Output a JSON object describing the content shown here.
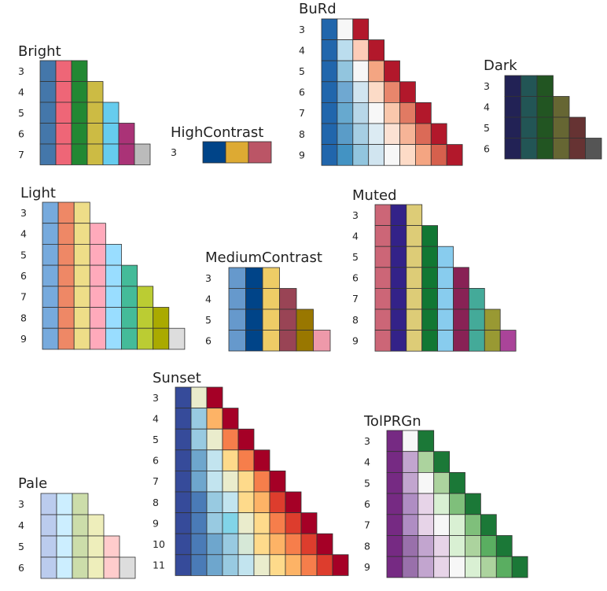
{
  "chart_data": [
    {
      "type": "heatmap",
      "title": "Bright",
      "rows": [
        {
          "label": "3",
          "colors": [
            "#4477AA",
            "#EE6677",
            "#228833"
          ]
        },
        {
          "label": "4",
          "colors": [
            "#4477AA",
            "#EE6677",
            "#228833",
            "#CCBB44"
          ]
        },
        {
          "label": "5",
          "colors": [
            "#4477AA",
            "#EE6677",
            "#228833",
            "#CCBB44",
            "#66CCEE"
          ]
        },
        {
          "label": "6",
          "colors": [
            "#4477AA",
            "#EE6677",
            "#228833",
            "#CCBB44",
            "#66CCEE",
            "#AA3377"
          ]
        },
        {
          "label": "7",
          "colors": [
            "#4477AA",
            "#EE6677",
            "#228833",
            "#CCBB44",
            "#66CCEE",
            "#AA3377",
            "#BBBBBB"
          ]
        }
      ]
    },
    {
      "type": "heatmap",
      "title": "HighContrast",
      "rows": [
        {
          "label": "3",
          "colors": [
            "#004488",
            "#DDAA33",
            "#BB5566"
          ]
        }
      ]
    },
    {
      "type": "heatmap",
      "title": "BuRd",
      "rows": [
        {
          "label": "3",
          "colors": [
            "#2166AC",
            "#F7F7F7",
            "#B2182B"
          ]
        },
        {
          "label": "4",
          "colors": [
            "#2166AC",
            "#BBDDEE",
            "#FDCCB8",
            "#B2182B"
          ]
        },
        {
          "label": "5",
          "colors": [
            "#2166AC",
            "#92C5DE",
            "#F7F7F7",
            "#F4A582",
            "#B2182B"
          ]
        },
        {
          "label": "6",
          "colors": [
            "#2166AC",
            "#6FA8D1",
            "#D1E5F0",
            "#FCDBC7",
            "#E8866C",
            "#B2182B"
          ]
        },
        {
          "label": "7",
          "colors": [
            "#2166AC",
            "#67A9CF",
            "#B8D7E8",
            "#F7F7F7",
            "#F9C7AC",
            "#E17A63",
            "#B2182B"
          ]
        },
        {
          "label": "8",
          "colors": [
            "#2166AC",
            "#5A9CC8",
            "#A6CEE3",
            "#DCEBF3",
            "#FBE1D3",
            "#F6B497",
            "#DB6A57",
            "#B2182B"
          ]
        },
        {
          "label": "9",
          "colors": [
            "#2166AC",
            "#4393C3",
            "#92C5DE",
            "#D1E5F0",
            "#F7F7F7",
            "#FDDBC7",
            "#F4A582",
            "#D6604D",
            "#B2182B"
          ]
        }
      ]
    },
    {
      "type": "heatmap",
      "title": "Dark",
      "rows": [
        {
          "label": "3",
          "colors": [
            "#222255",
            "#225555",
            "#225522"
          ]
        },
        {
          "label": "4",
          "colors": [
            "#222255",
            "#225555",
            "#225522",
            "#666633"
          ]
        },
        {
          "label": "5",
          "colors": [
            "#222255",
            "#225555",
            "#225522",
            "#666633",
            "#663333"
          ]
        },
        {
          "label": "6",
          "colors": [
            "#222255",
            "#225555",
            "#225522",
            "#666633",
            "#663333",
            "#555555"
          ]
        }
      ]
    },
    {
      "type": "heatmap",
      "title": "Light",
      "rows": [
        {
          "label": "3",
          "colors": [
            "#77AADD",
            "#EE8866",
            "#EEDD88"
          ]
        },
        {
          "label": "4",
          "colors": [
            "#77AADD",
            "#EE8866",
            "#EEDD88",
            "#FFAABB"
          ]
        },
        {
          "label": "5",
          "colors": [
            "#77AADD",
            "#EE8866",
            "#EEDD88",
            "#FFAABB",
            "#99DDFF"
          ]
        },
        {
          "label": "6",
          "colors": [
            "#77AADD",
            "#EE8866",
            "#EEDD88",
            "#FFAABB",
            "#99DDFF",
            "#44BB99"
          ]
        },
        {
          "label": "7",
          "colors": [
            "#77AADD",
            "#EE8866",
            "#EEDD88",
            "#FFAABB",
            "#99DDFF",
            "#44BB99",
            "#BBCC33"
          ]
        },
        {
          "label": "8",
          "colors": [
            "#77AADD",
            "#EE8866",
            "#EEDD88",
            "#FFAABB",
            "#99DDFF",
            "#44BB99",
            "#BBCC33",
            "#AAAA00"
          ]
        },
        {
          "label": "9",
          "colors": [
            "#77AADD",
            "#EE8866",
            "#EEDD88",
            "#FFAABB",
            "#99DDFF",
            "#44BB99",
            "#BBCC33",
            "#AAAA00",
            "#DDDDDD"
          ]
        }
      ]
    },
    {
      "type": "heatmap",
      "title": "MediumContrast",
      "rows": [
        {
          "label": "3",
          "colors": [
            "#6699CC",
            "#004488",
            "#EECC66"
          ]
        },
        {
          "label": "4",
          "colors": [
            "#6699CC",
            "#004488",
            "#EECC66",
            "#994455"
          ]
        },
        {
          "label": "5",
          "colors": [
            "#6699CC",
            "#004488",
            "#EECC66",
            "#994455",
            "#997700"
          ]
        },
        {
          "label": "6",
          "colors": [
            "#6699CC",
            "#004488",
            "#EECC66",
            "#994455",
            "#997700",
            "#EE99AA"
          ]
        }
      ]
    },
    {
      "type": "heatmap",
      "title": "Muted",
      "rows": [
        {
          "label": "3",
          "colors": [
            "#CC6677",
            "#332288",
            "#DDCC77"
          ]
        },
        {
          "label": "4",
          "colors": [
            "#CC6677",
            "#332288",
            "#DDCC77",
            "#117733"
          ]
        },
        {
          "label": "5",
          "colors": [
            "#CC6677",
            "#332288",
            "#DDCC77",
            "#117733",
            "#88CCEE"
          ]
        },
        {
          "label": "6",
          "colors": [
            "#CC6677",
            "#332288",
            "#DDCC77",
            "#117733",
            "#88CCEE",
            "#882255"
          ]
        },
        {
          "label": "7",
          "colors": [
            "#CC6677",
            "#332288",
            "#DDCC77",
            "#117733",
            "#88CCEE",
            "#882255",
            "#44AA99"
          ]
        },
        {
          "label": "8",
          "colors": [
            "#CC6677",
            "#332288",
            "#DDCC77",
            "#117733",
            "#88CCEE",
            "#882255",
            "#44AA99",
            "#999933"
          ]
        },
        {
          "label": "9",
          "colors": [
            "#CC6677",
            "#332288",
            "#DDCC77",
            "#117733",
            "#88CCEE",
            "#882255",
            "#44AA99",
            "#999933",
            "#AA4499"
          ]
        }
      ]
    },
    {
      "type": "heatmap",
      "title": "Pale",
      "rows": [
        {
          "label": "3",
          "colors": [
            "#BBCCEE",
            "#CCEEFF",
            "#CCDDAA"
          ]
        },
        {
          "label": "4",
          "colors": [
            "#BBCCEE",
            "#CCEEFF",
            "#CCDDAA",
            "#EEEEBB"
          ]
        },
        {
          "label": "5",
          "colors": [
            "#BBCCEE",
            "#CCEEFF",
            "#CCDDAA",
            "#EEEEBB",
            "#FFCCCC"
          ]
        },
        {
          "label": "6",
          "colors": [
            "#BBCCEE",
            "#CCEEFF",
            "#CCDDAA",
            "#EEEEBB",
            "#FFCCCC",
            "#DDDDDD"
          ]
        }
      ]
    },
    {
      "type": "heatmap",
      "title": "Sunset",
      "rows": [
        {
          "label": "3",
          "colors": [
            "#364B9A",
            "#EAECCC",
            "#A50026"
          ]
        },
        {
          "label": "4",
          "colors": [
            "#364B9A",
            "#98CAE1",
            "#FDB366",
            "#A50026"
          ]
        },
        {
          "label": "5",
          "colors": [
            "#364B9A",
            "#98CAE1",
            "#EAECCC",
            "#F67E4B",
            "#A50026"
          ]
        },
        {
          "label": "6",
          "colors": [
            "#364B9A",
            "#6EA6CD",
            "#C2E4EF",
            "#FEDA8B",
            "#F67E4B",
            "#A50026"
          ]
        },
        {
          "label": "7",
          "colors": [
            "#364B9A",
            "#6EA6CD",
            "#C2E4EF",
            "#EAECCC",
            "#FEDA8B",
            "#F67E4B",
            "#A50026"
          ]
        },
        {
          "label": "8",
          "colors": [
            "#364B9A",
            "#4A7BB7",
            "#98CAE1",
            "#C2E4EF",
            "#FEDA8B",
            "#FDB366",
            "#DD3D2D",
            "#A50026"
          ]
        },
        {
          "label": "9",
          "colors": [
            "#364B9A",
            "#4A7BB7",
            "#98CAE1",
            "#81D4E8",
            "#EAECCC",
            "#FEDA8B",
            "#F67E4B",
            "#DD3D2D",
            "#A50026"
          ]
        },
        {
          "label": "10",
          "colors": [
            "#364B9A",
            "#4A7BB7",
            "#6EA6CD",
            "#98CAE1",
            "#D6E8D7",
            "#FEDA8B",
            "#FDB366",
            "#F67E4B",
            "#DD3D2D",
            "#A50026"
          ]
        },
        {
          "label": "11",
          "colors": [
            "#364B9A",
            "#4A7BB7",
            "#6EA6CD",
            "#98CAE1",
            "#C2E4EF",
            "#EAECCC",
            "#FEDA8B",
            "#FDB366",
            "#F67E4B",
            "#DD3D2D",
            "#A50026"
          ]
        }
      ]
    },
    {
      "type": "heatmap",
      "title": "TolPRGn",
      "rows": [
        {
          "label": "3",
          "colors": [
            "#762A83",
            "#F7F7F7",
            "#1B7837"
          ]
        },
        {
          "label": "4",
          "colors": [
            "#762A83",
            "#C2A5CF",
            "#ACD39E",
            "#1B7837"
          ]
        },
        {
          "label": "5",
          "colors": [
            "#762A83",
            "#C2A5CF",
            "#F7F7F7",
            "#ACD39E",
            "#1B7837"
          ]
        },
        {
          "label": "6",
          "colors": [
            "#762A83",
            "#AF8DC3",
            "#E7D4E8",
            "#D9F0D3",
            "#7FBF7B",
            "#1B7837"
          ]
        },
        {
          "label": "7",
          "colors": [
            "#762A83",
            "#AF8DC3",
            "#E7D4E8",
            "#F7F7F7",
            "#D9F0D3",
            "#7FBF7B",
            "#1B7837"
          ]
        },
        {
          "label": "8",
          "colors": [
            "#762A83",
            "#9970AB",
            "#C2A5CF",
            "#E7D4E8",
            "#D9F0D3",
            "#ACD39E",
            "#5AAE61",
            "#1B7837"
          ]
        },
        {
          "label": "9",
          "colors": [
            "#762A83",
            "#9970AB",
            "#C2A5CF",
            "#E7D4E8",
            "#F7F7F7",
            "#D9F0D3",
            "#ACD39E",
            "#5AAE61",
            "#1B7837"
          ]
        }
      ]
    }
  ]
}
